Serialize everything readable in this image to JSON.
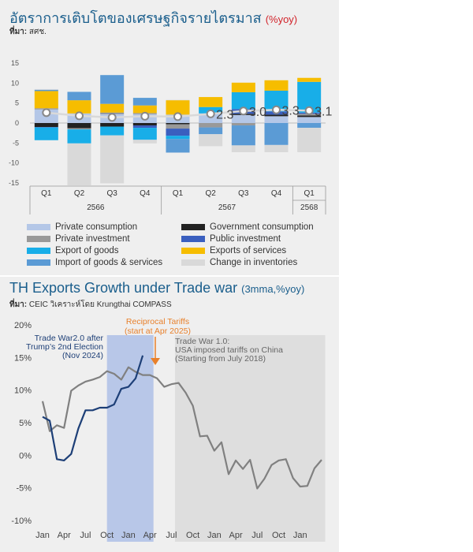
{
  "chart1": {
    "title": "อัตราการเติบโตของเศรษฐกิจรายไตรมาส",
    "unit": "(%yoy)",
    "source_label": "ที่มา:",
    "source": "สศช.",
    "chart_data": {
      "type": "bar",
      "stacked": true,
      "ylim": [
        -15,
        15
      ],
      "yticks": [
        "15",
        "10",
        "5",
        "0",
        "-5",
        "-10",
        "-15"
      ],
      "categories": [
        "Q1",
        "Q2",
        "Q3",
        "Q4",
        "Q1",
        "Q2",
        "Q3",
        "Q4",
        "Q1"
      ],
      "groups": [
        {
          "label": "2566",
          "span": 4
        },
        {
          "label": "2567",
          "span": 4
        },
        {
          "label": "2568",
          "span": 1
        }
      ],
      "series": [
        {
          "name": "Private consumption",
          "color": "#b4c7e7",
          "values": [
            3.4,
            2.4,
            2.2,
            2.2,
            2.1,
            2.4,
            2.0,
            1.7,
            1.5
          ]
        },
        {
          "name": "Government consumption",
          "color": "#222222",
          "values": [
            -1.0,
            -1.3,
            -0.9,
            -0.6,
            -0.3,
            0.0,
            0.3,
            0.4,
            0.4
          ]
        },
        {
          "name": "Private investment",
          "color": "#999999",
          "values": [
            0.3,
            -0.3,
            0.3,
            0.3,
            -1.1,
            -1.1,
            -0.6,
            0.0,
            0.4
          ]
        },
        {
          "name": "Public investment",
          "color": "#3a5fbf",
          "values": [
            -0.1,
            0.0,
            0.1,
            -0.6,
            -1.8,
            0.0,
            1.2,
            0.8,
            0.3
          ]
        },
        {
          "name": "Export of goods",
          "color": "#18aee8",
          "values": [
            -3.2,
            -3.5,
            -2.2,
            -3.0,
            -0.8,
            1.6,
            4.2,
            5.2,
            7.7
          ]
        },
        {
          "name": "Exports of services",
          "color": "#f6bd00",
          "values": [
            4.3,
            3.3,
            2.2,
            1.9,
            3.6,
            2.5,
            2.4,
            2.6,
            1.0
          ]
        },
        {
          "name": "Import of goods & services",
          "color": "#5b9bd5",
          "values": [
            0.3,
            2.1,
            7.2,
            1.9,
            -3.4,
            -1.7,
            -5.0,
            -5.5,
            -1.2
          ]
        },
        {
          "name": "Change in inventories",
          "color": "#d9d9d9",
          "values": [
            0.2,
            -10.5,
            -12.0,
            -0.9,
            0.1,
            -3.0,
            -1.7,
            -1.8,
            -6.1
          ]
        }
      ],
      "gdp": {
        "values": [
          2.6,
          1.8,
          1.4,
          1.7,
          1.6,
          2.3,
          3.0,
          3.3,
          3.1
        ],
        "labels": [
          "",
          "",
          "",
          "",
          "",
          "2.3",
          "3.0",
          "3.3",
          "3.1"
        ]
      }
    }
  },
  "chart2": {
    "title": "TH Exports Growth under Trade war",
    "unit": "(3mma,%yoy)",
    "source_label": "ที่มา:",
    "source": "CEIC วิเคราะห์โดย Krungthai COMPASS",
    "chart_data": {
      "type": "line",
      "ylim": [
        -10,
        20
      ],
      "yticks": [
        "20%",
        "15%",
        "10%",
        "5%",
        "0%",
        "-5%",
        "-10%"
      ],
      "xticks": [
        "Jan",
        "Apr",
        "Jul",
        "Oct",
        "Jan",
        "Apr",
        "Jul",
        "Oct",
        "Jan",
        "Apr",
        "Jul",
        "Oct",
        "Jan"
      ],
      "series": [
        {
          "name": "Trade War 1.0",
          "color": "#808080",
          "values": [
            8.3,
            3.7,
            4.6,
            4.2,
            9.9,
            10.7,
            11.3,
            11.6,
            12.0,
            12.9,
            12.5,
            11.6,
            13.5,
            12.8,
            12.3,
            12.3,
            11.8,
            10.5,
            10.9,
            11.1,
            9.6,
            7.6,
            2.9,
            3.0,
            0.7,
            2.0,
            -2.9,
            -0.8,
            -2.1,
            -0.7,
            -5.1,
            -3.6,
            -1.5,
            -0.8,
            -0.6,
            -3.5,
            -4.8,
            -4.7,
            -2.0,
            -0.7
          ]
        },
        {
          "name": "Trade War 2.0",
          "color": "#1d3f77",
          "values": [
            5.9,
            5.3,
            -0.6,
            -0.8,
            0.2,
            4.1,
            6.9,
            6.9,
            7.3,
            7.3,
            7.8,
            10.2,
            10.5,
            11.8,
            15.3
          ]
        }
      ],
      "shading": [
        {
          "from": 9,
          "to": 15.5,
          "color": "#b8c7e8"
        },
        {
          "from": 18.5,
          "to": 39.5,
          "color": "#dedede"
        }
      ],
      "annotations": [
        {
          "text": [
            "Reciprocal Tariffs",
            "(start at Apr 2025)"
          ],
          "color": "#e8802b"
        },
        {
          "text": [
            "Trade War2.0 after",
            "Trump’s 2nd Election",
            "(Nov 2024)"
          ],
          "color": "#1d3f77"
        },
        {
          "text": [
            "Trade War 1.0:",
            "USA imposed tariffs on China",
            "(Starting from July 2018)"
          ],
          "color": "#666666"
        }
      ]
    }
  }
}
